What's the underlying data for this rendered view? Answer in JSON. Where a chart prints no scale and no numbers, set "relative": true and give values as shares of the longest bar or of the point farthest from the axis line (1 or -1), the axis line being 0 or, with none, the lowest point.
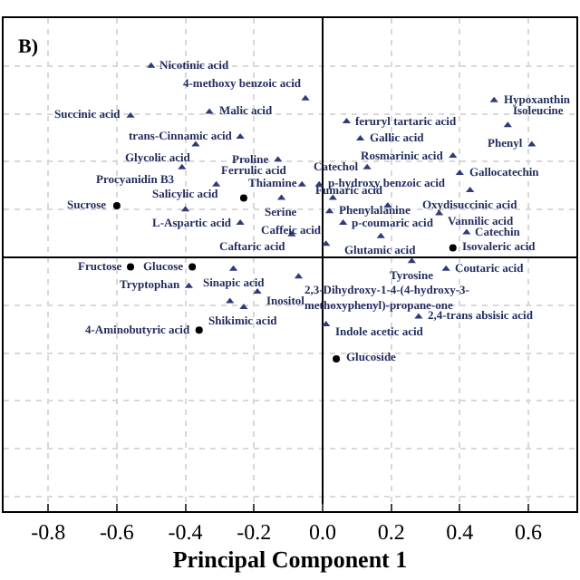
{
  "chart_data": {
    "type": "scatter",
    "relative": true,
    "xlabel": "Principal Component 1",
    "xlim": [
      -0.93,
      0.74
    ],
    "xticks": [
      -0.8,
      -0.6,
      -0.4,
      -0.2,
      {
        "value": 0,
        "label": "0.0"
      },
      0.2,
      0.4,
      0.6
    ],
    "tick_labels": "x",
    "grid": true,
    "series": [
      {
        "color": "#2e3b78",
        "marker": "triangle",
        "x": [
          -0.5,
          -0.56,
          -0.33,
          -0.24,
          -0.37,
          -0.41,
          -0.13,
          -0.31,
          -0.06,
          -0.01,
          -0.12,
          0.03,
          -0.4,
          -0.24,
          0.02,
          0.06,
          -0.09,
          0.17,
          0.42,
          0.01,
          -0.05,
          0.5,
          0.07,
          0.54,
          0.11,
          0.61,
          0.38,
          0.13,
          0.4,
          0.43,
          0.19,
          0.34,
          0.26,
          0.36,
          -0.26,
          -0.39,
          -0.19,
          -0.27,
          -0.23,
          -0.07,
          0.01,
          0.28
        ],
        "values": [
          1.0,
          0.74,
          0.76,
          0.63,
          0.59,
          0.47,
          0.51,
          0.38,
          0.38,
          0.38,
          0.31,
          0.31,
          0.25,
          0.18,
          0.24,
          0.18,
          0.12,
          0.11,
          0.13,
          0.07,
          0.83,
          0.82,
          0.71,
          0.69,
          0.62,
          0.59,
          0.53,
          0.47,
          0.44,
          0.35,
          0.27,
          0.23,
          -0.02,
          -0.06,
          -0.06,
          -0.15,
          -0.18,
          -0.23,
          -0.26,
          -0.1,
          -0.35,
          -0.31
        ]
      },
      {
        "color": "#000000",
        "marker": "circle",
        "x": [
          -0.23,
          -0.6,
          0.38,
          -0.56,
          -0.38,
          -0.36,
          0.04
        ],
        "values": [
          0.31,
          0.27,
          0.05,
          -0.05,
          -0.05,
          -0.38,
          -0.53
        ]
      }
    ],
    "annotations": [
      "B)",
      {
        "text": "Nicotinic acid",
        "x": -0.5,
        "y": 1.0
      },
      {
        "text": "Succinic acid",
        "x": -0.56,
        "y": 0.74
      },
      {
        "text": "Malic acid",
        "x": -0.33,
        "y": 0.76
      },
      {
        "text": "trans-Cinnamic acid",
        "x": -0.24,
        "y": 0.63
      },
      {
        "text": "Glycolic acid",
        "x": -0.37,
        "y": 0.59
      },
      {
        "text": "Procyanidin B3",
        "x": -0.41,
        "y": 0.47
      },
      {
        "text": "Proline",
        "x": -0.13,
        "y": 0.51
      },
      {
        "text": "Ferrulic acid",
        "x": -0.31,
        "y": 0.38
      },
      {
        "text": "p-hydroxy benzoic acid",
        "x": -0.01,
        "y": 0.38
      },
      {
        "text": "Serine",
        "x": -0.12,
        "y": 0.31
      },
      {
        "text": "Phenylalanine",
        "x": 0.03,
        "y": 0.31
      },
      {
        "text": "Salicylic acid",
        "x": -0.4,
        "y": 0.25
      },
      {
        "text": "L-Aspartic acid",
        "x": -0.24,
        "y": 0.18
      },
      {
        "text": "p-coumaric acid",
        "x": 0.06,
        "y": 0.18
      },
      {
        "text": "Caftaric acid",
        "x": -0.09,
        "y": 0.12
      },
      {
        "text": "Glutamic acid",
        "x": 0.17,
        "y": 0.11
      },
      {
        "text": "Catechin",
        "x": 0.42,
        "y": 0.13
      },
      {
        "text": "Caffeic acid",
        "x": 0.01,
        "y": 0.07
      },
      {
        "text": "4-methoxy benzoic acid",
        "x": -0.05,
        "y": 0.83
      },
      {
        "text": "Hypoxanthin",
        "x": 0.5,
        "y": 0.82
      },
      {
        "text": "feruryl tartaric acid",
        "x": 0.07,
        "y": 0.71
      },
      {
        "text": "Isoleucine",
        "x": 0.54,
        "y": 0.69
      },
      {
        "text": "Gallic acid",
        "x": 0.11,
        "y": 0.62
      },
      {
        "text": "Phenyl",
        "x": 0.61,
        "y": 0.59
      },
      {
        "text": "Rosmarinic acid",
        "x": 0.38,
        "y": 0.53
      },
      {
        "text": "Catechol",
        "x": 0.13,
        "y": 0.47
      },
      {
        "text": "Gallocatechin",
        "x": 0.4,
        "y": 0.44
      },
      {
        "text": "Oxydisuccinic acid",
        "x": 0.43,
        "y": 0.35
      },
      {
        "text": "Fumaric acid",
        "x": 0.19,
        "y": 0.27
      },
      {
        "text": "Vannilic acid",
        "x": 0.34,
        "y": 0.23
      },
      {
        "text": "Tyrosine",
        "x": 0.26,
        "y": -0.02
      },
      {
        "text": "Coutaric acid",
        "x": 0.36,
        "y": -0.06
      },
      {
        "text": "Sinapic acid",
        "x": -0.26,
        "y": -0.06
      },
      {
        "text": "Tryptophan",
        "x": -0.39,
        "y": -0.15
      },
      {
        "text": "Inositol",
        "x": -0.19,
        "y": -0.18
      },
      {
        "text": "Shikimic acid",
        "x": -0.23,
        "y": -0.26
      },
      {
        "text": "2,3-Dihydroxy-1-4-(4-hydroxy-3-\nmethoxyphenyl)-propane-one",
        "x": -0.07,
        "y": -0.1
      },
      {
        "text": "Indole acetic acid",
        "x": 0.01,
        "y": -0.35
      },
      {
        "text": "2,4-trans absisic acid",
        "x": 0.28,
        "y": -0.31
      },
      {
        "text": "Thiamine",
        "x": -0.23,
        "y": 0.31
      },
      {
        "text": "Sucrose",
        "x": -0.6,
        "y": 0.27
      },
      {
        "text": "Isovaleric acid",
        "x": 0.38,
        "y": 0.05
      },
      {
        "text": "Fructose",
        "x": -0.56,
        "y": -0.05
      },
      {
        "text": "Glucose",
        "x": -0.38,
        "y": -0.05
      },
      {
        "text": "4-Aminobutyric acid",
        "x": -0.36,
        "y": -0.38
      },
      {
        "text": "Glucoside",
        "x": 0.04,
        "y": -0.53
      }
    ]
  }
}
